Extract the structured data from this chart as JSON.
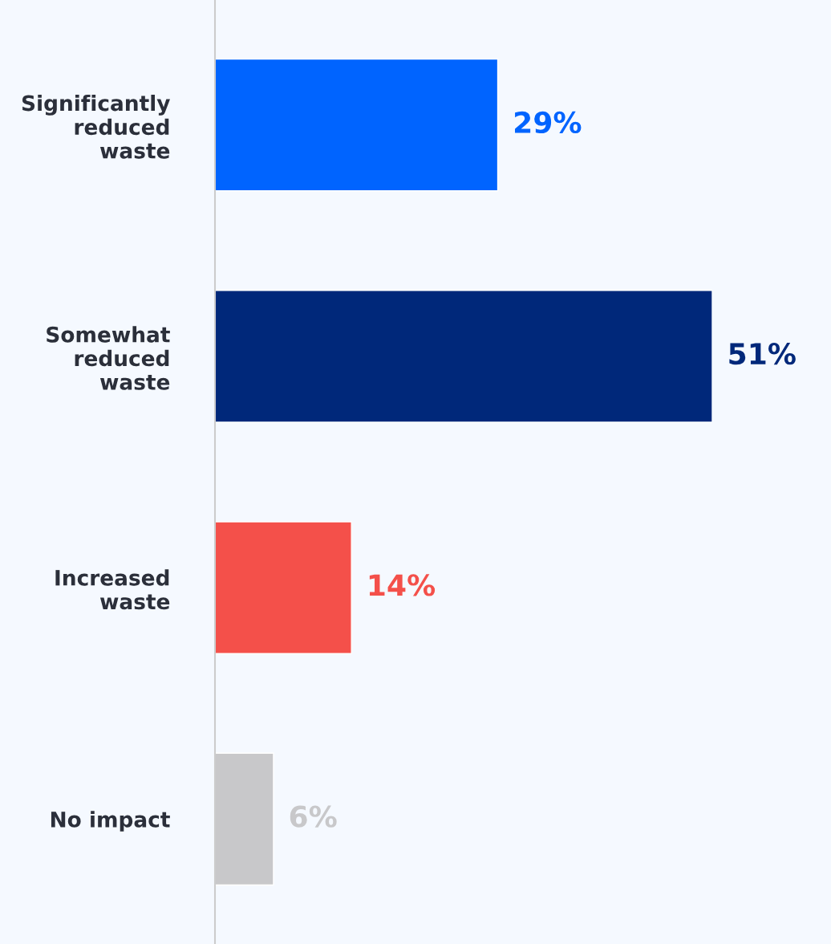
{
  "chart_data": {
    "type": "bar",
    "orientation": "horizontal",
    "categories": [
      "Significantly\nreduced\nwaste",
      "Somewhat\nreduced\nwaste",
      "Increased\nwaste",
      "No impact"
    ],
    "values": [
      29,
      51,
      14,
      6
    ],
    "colors": [
      "#0064ff",
      "#00287a",
      "#f4504a",
      "#c8c8ca"
    ],
    "value_labels": [
      "29%",
      "51%",
      "14%",
      "6%"
    ],
    "grid": false,
    "legend": false
  }
}
